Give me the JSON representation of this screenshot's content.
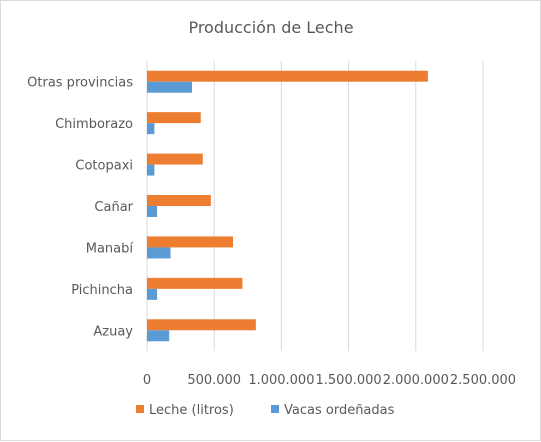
{
  "chart_data": {
    "type": "bar",
    "orientation": "horizontal",
    "title": "Producción de Leche",
    "xlabel": "",
    "ylabel": "",
    "categories": [
      "Otras provincias",
      "Chimborazo",
      "Cotopaxi",
      "Cañar",
      "Manabí",
      "Pichincha",
      "Azuay"
    ],
    "series": [
      {
        "name": "Leche (litros)",
        "color": "#ed7d31",
        "values": [
          2090000,
          400000,
          415000,
          475000,
          640000,
          710000,
          810000
        ]
      },
      {
        "name": "Vacas ordeñadas",
        "color": "#5b9bd5",
        "values": [
          335000,
          55000,
          55000,
          75000,
          175000,
          75000,
          165000
        ]
      }
    ],
    "x_ticks": [
      "0",
      "500.000",
      "1.000.000",
      "1.500.000",
      "2.000.000",
      "2.500.000"
    ],
    "xlim": [
      0,
      2500000
    ],
    "grid": "vertical",
    "legend": "bottom"
  }
}
